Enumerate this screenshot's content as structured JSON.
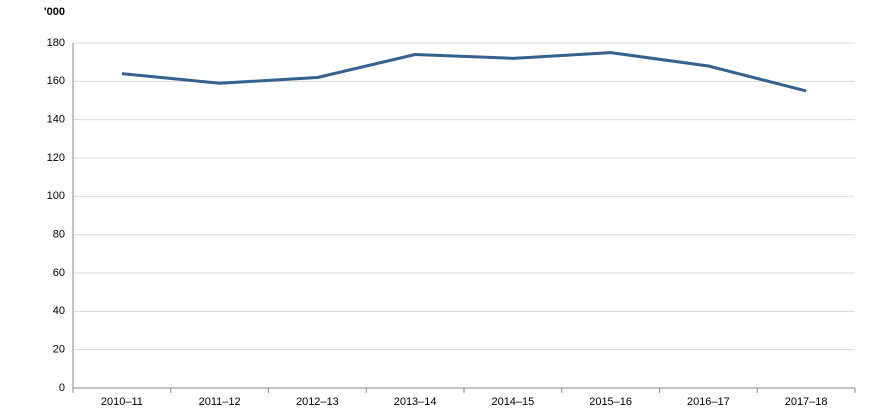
{
  "chart_data": {
    "type": "line",
    "y_label": "'000",
    "categories": [
      "2010–11",
      "2011–12",
      "2012–13",
      "2013–14",
      "2014–15",
      "2015–16",
      "2016–17",
      "2017–18"
    ],
    "series": [
      {
        "color": "#34618f",
        "values": [
          164,
          159,
          162,
          174,
          172,
          175,
          168,
          155
        ]
      }
    ],
    "ylim": [
      0,
      180
    ],
    "yticks": [
      0,
      20,
      40,
      60,
      80,
      100,
      120,
      140,
      160,
      180
    ],
    "grid": true
  }
}
